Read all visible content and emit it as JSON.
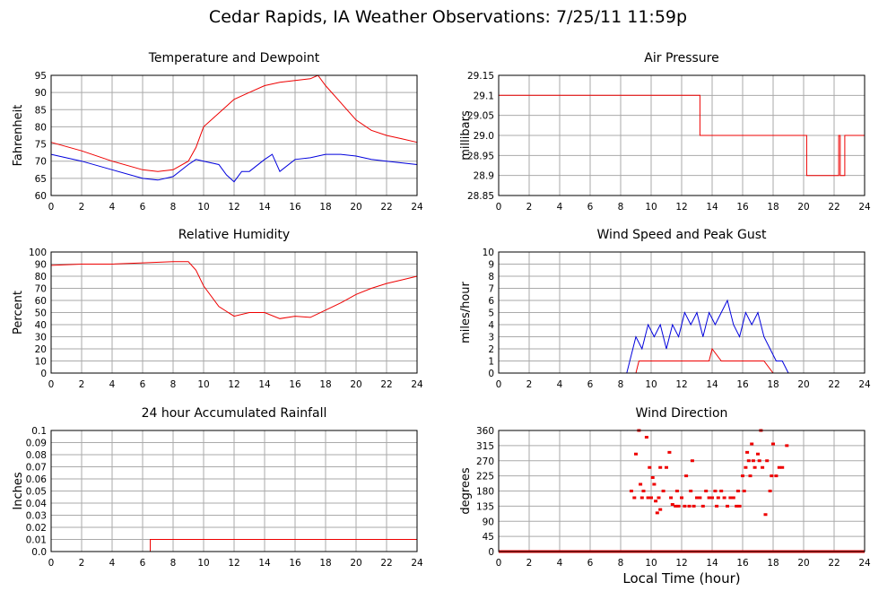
{
  "page": {
    "title": "Cedar Rapids, IA Weather Observations: 7/25/11 11:59p"
  },
  "colors": {
    "red": "#ee0000",
    "blue": "#0000dd",
    "grid": "#aaaaaa"
  },
  "x_axis": {
    "label": "Local Time (hour)",
    "range": [
      0,
      24
    ],
    "ticks": [
      0,
      2,
      4,
      6,
      8,
      10,
      12,
      14,
      16,
      18,
      20,
      22,
      24
    ]
  },
  "chart_data": [
    {
      "id": "temp",
      "type": "line",
      "title": "Temperature and Dewpoint",
      "ylabel": "Fahrenheit",
      "ylim": [
        60,
        95
      ],
      "yticks": [
        "60",
        "65",
        "70",
        "75",
        "80",
        "85",
        "90",
        "95"
      ],
      "grid": true,
      "series": [
        {
          "color": "#ee0000",
          "x": [
            0,
            2,
            4,
            6,
            7,
            8,
            9,
            9.5,
            10,
            11,
            12,
            13,
            14,
            15,
            16,
            17,
            17.5,
            18,
            19,
            20,
            21,
            22,
            23,
            24
          ],
          "y": [
            75.5,
            73,
            70,
            67.5,
            67,
            67.5,
            70,
            74,
            80,
            84,
            88,
            90,
            92,
            93,
            93.5,
            94,
            95,
            92,
            87,
            82,
            79,
            77.5,
            76.5,
            75.5
          ]
        },
        {
          "color": "#0000dd",
          "x": [
            0,
            2,
            4,
            6,
            7,
            8,
            9,
            9.5,
            10,
            11,
            11.5,
            12,
            12.5,
            13,
            14,
            14.5,
            15,
            16,
            17,
            18,
            19,
            20,
            21,
            22,
            23,
            24
          ],
          "y": [
            72,
            70,
            67.5,
            65,
            64.5,
            65.5,
            69,
            70.5,
            70,
            69,
            66,
            64,
            67,
            67,
            70.5,
            72,
            67,
            70.5,
            71,
            72,
            72,
            71.5,
            70.5,
            70,
            69.5,
            69
          ]
        }
      ]
    },
    {
      "id": "pressure",
      "type": "line",
      "title": "Air Pressure",
      "ylabel": "millibars",
      "ylim": [
        28.85,
        29.15
      ],
      "yticks": [
        "28.85",
        "28.9",
        "28.95",
        "29.0",
        "29.05",
        "29.1",
        "29.15"
      ],
      "grid": true,
      "series": [
        {
          "color": "#ee0000",
          "x": [
            0,
            13.2,
            13.2,
            13.3,
            13.3,
            20.2,
            20.2,
            22.3,
            22.3,
            22.4,
            22.4,
            22.7,
            22.7,
            23.0,
            23.0,
            24
          ],
          "y": [
            29.1,
            29.1,
            29.0,
            29.0,
            29.0,
            29.0,
            28.9,
            28.9,
            29.0,
            29.0,
            28.9,
            28.9,
            29.0,
            29.0,
            29.0,
            29.0
          ]
        }
      ]
    },
    {
      "id": "rh",
      "type": "line",
      "title": "Relative Humidity",
      "ylabel": "Percent",
      "ylim": [
        0,
        100
      ],
      "yticks": [
        "0",
        "10",
        "20",
        "30",
        "40",
        "50",
        "60",
        "70",
        "80",
        "90",
        "100"
      ],
      "grid": true,
      "series": [
        {
          "color": "#ee0000",
          "x": [
            0,
            2,
            4,
            6,
            8,
            9,
            9.5,
            10,
            11,
            12,
            13,
            14,
            15,
            16,
            17,
            18,
            19,
            20,
            21,
            22,
            23,
            24
          ],
          "y": [
            89,
            90,
            90,
            91,
            92,
            92,
            85,
            72,
            55,
            47,
            50,
            50,
            45,
            47,
            46,
            52,
            58,
            65,
            70,
            74,
            77,
            80
          ]
        }
      ]
    },
    {
      "id": "wind",
      "type": "line",
      "title": "Wind Speed and Peak Gust",
      "ylabel": "miles/hour",
      "ylim": [
        0,
        10
      ],
      "yticks": [
        "0",
        "1",
        "2",
        "3",
        "4",
        "5",
        "6",
        "7",
        "8",
        "9",
        "10"
      ],
      "grid": true,
      "series": [
        {
          "color": "#0000dd",
          "x": [
            0,
            8.4,
            8.6,
            9.0,
            9.4,
            9.8,
            10.2,
            10.6,
            11.0,
            11.4,
            11.8,
            12.2,
            12.6,
            13.0,
            13.4,
            13.8,
            14.2,
            14.6,
            15.0,
            15.4,
            15.8,
            16.2,
            16.6,
            17.0,
            17.4,
            17.8,
            18.2,
            18.6,
            19.0,
            24
          ],
          "y": [
            0,
            0,
            1,
            3,
            2,
            4,
            3,
            4,
            2,
            4,
            3,
            5,
            4,
            5,
            3,
            5,
            4,
            5,
            6,
            4,
            3,
            5,
            4,
            5,
            3,
            2,
            1,
            1,
            0,
            0
          ]
        },
        {
          "color": "#ee0000",
          "x": [
            0,
            9.0,
            9.2,
            10.0,
            11.0,
            12.0,
            13.0,
            13.8,
            14.0,
            14.6,
            15.0,
            16.0,
            17.0,
            17.4,
            18.0,
            24
          ],
          "y": [
            0,
            0,
            1,
            1,
            1,
            1,
            1,
            1,
            2,
            1,
            1,
            1,
            1,
            1,
            0,
            0
          ]
        }
      ]
    },
    {
      "id": "rain",
      "type": "line",
      "title": "24 hour Accumulated Rainfall",
      "ylabel": "Inches",
      "ylim": [
        0,
        0.1
      ],
      "yticks": [
        "0.0",
        "0.01",
        "0.02",
        "0.03",
        "0.04",
        "0.05",
        "0.06",
        "0.07",
        "0.08",
        "0.09",
        "0.1"
      ],
      "grid": true,
      "series": [
        {
          "color": "#ee0000",
          "x": [
            0,
            6.5,
            6.5,
            24
          ],
          "y": [
            0,
            0,
            0.01,
            0.01
          ]
        }
      ]
    },
    {
      "id": "dir",
      "type": "scatter",
      "title": "Wind Direction",
      "ylabel": "degrees",
      "ylim": [
        0,
        360
      ],
      "yticks": [
        "0",
        "45",
        "90",
        "135",
        "180",
        "225",
        "270",
        "315",
        "360"
      ],
      "grid": true,
      "series": [
        {
          "color": "#ee0000",
          "baseline": 0,
          "x": [
            8.7,
            8.9,
            9.0,
            9.2,
            9.3,
            9.4,
            9.5,
            9.7,
            9.8,
            9.9,
            10.0,
            10.1,
            10.2,
            10.3,
            10.4,
            10.5,
            10.6,
            10.6,
            10.8,
            11.0,
            11.2,
            11.3,
            11.4,
            11.6,
            11.7,
            11.8,
            12.0,
            12.2,
            12.3,
            12.5,
            12.6,
            12.7,
            12.8,
            13.0,
            13.2,
            13.4,
            13.6,
            13.8,
            14.0,
            14.2,
            14.3,
            14.4,
            14.6,
            14.8,
            15.0,
            15.2,
            15.4,
            15.6,
            15.7,
            15.8,
            16.0,
            16.1,
            16.2,
            16.3,
            16.4,
            16.5,
            16.6,
            16.7,
            16.8,
            17.0,
            17.1,
            17.2,
            17.3,
            17.5,
            17.6,
            17.8,
            17.9,
            18.0,
            18.2,
            18.4,
            18.6,
            18.9
          ],
          "y": [
            180,
            160,
            290,
            360,
            200,
            160,
            180,
            340,
            160,
            250,
            160,
            220,
            200,
            150,
            115,
            160,
            250,
            125,
            180,
            250,
            295,
            160,
            140,
            135,
            180,
            135,
            160,
            135,
            225,
            135,
            180,
            270,
            135,
            160,
            160,
            135,
            180,
            160,
            160,
            180,
            135,
            160,
            180,
            160,
            135,
            160,
            160,
            135,
            180,
            135,
            225,
            180,
            250,
            295,
            270,
            225,
            320,
            270,
            250,
            290,
            270,
            360,
            250,
            110,
            270,
            180,
            225,
            320,
            225,
            250,
            250,
            315
          ]
        }
      ]
    }
  ]
}
